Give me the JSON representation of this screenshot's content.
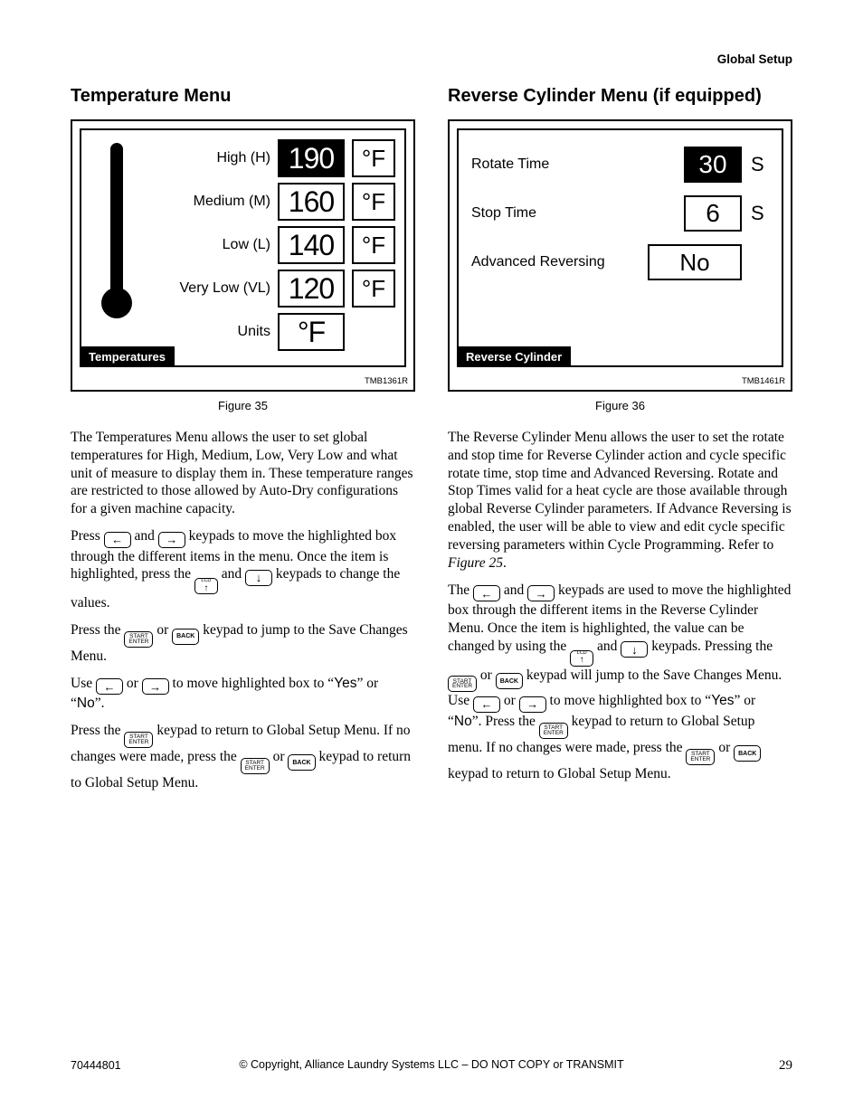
{
  "header": {
    "section": "Global Setup"
  },
  "left": {
    "title": "Temperature Menu",
    "panel": {
      "rows": [
        {
          "label": "High (H)",
          "value": "190",
          "highlight": true,
          "unit": "°F"
        },
        {
          "label": "Medium (M)",
          "value": "160",
          "highlight": false,
          "unit": "°F"
        },
        {
          "label": "Low (L)",
          "value": "140",
          "highlight": false,
          "unit": "°F"
        },
        {
          "label": "Very Low (VL)",
          "value": "120",
          "highlight": false,
          "unit": "°F"
        }
      ],
      "units_label": "Units",
      "units_value": "°F",
      "title_bar": "Temperatures",
      "code": "TMB1361R"
    },
    "caption": "Figure 35",
    "para1": "The Temperatures Menu allows the user to set global temperatures for High, Medium, Low, Very Low and what unit of measure to display them in. These temperature ranges are restricted to those allowed by Auto-Dry configurations for a given machine capacity.",
    "para2a": "Press ",
    "para2b": " and ",
    "para2c": " keypads to move the highlighted box through the different items in the menu. Once the item is highlighted, press the ",
    "para2d": " and ",
    "para2e": " keypads to change the values.",
    "para3a": "Press the ",
    "para3b": " or ",
    "para3c": " keypad to jump to the Save Changes Menu.",
    "para4a": "Use ",
    "para4b": " or ",
    "para4c": " to move highlighted box to “",
    "para4yes": "Yes",
    "para4d": "” or “",
    "para4no": "No",
    "para4e": "”.",
    "para5a": "Press the ",
    "para5b": " keypad to return to Global Setup Menu. If no changes were made, press the ",
    "para5c": " or ",
    "para5d": " keypad to return to Global Setup Menu."
  },
  "right": {
    "title": "Reverse Cylinder Menu (if equipped)",
    "panel": {
      "rows": [
        {
          "label": "Rotate Time",
          "value": "30",
          "highlight": true,
          "unit": "S"
        },
        {
          "label": "Stop Time",
          "value": "6",
          "highlight": false,
          "unit": "S"
        },
        {
          "label": "Advanced Reversing",
          "value": "No",
          "highlight": false,
          "wide": true
        }
      ],
      "title_bar": "Reverse Cylinder",
      "code": "TMB1461R"
    },
    "caption": "Figure 36",
    "para1": "The Reverse Cylinder Menu allows the user to set the rotate and stop time for Reverse Cylinder action and cycle specific rotate time, stop time and Advanced Reversing. Rotate and Stop Times valid for a heat cycle are those available through global Reverse Cylinder parameters. If Advance Reversing is enabled, the user will be able to view and edit cycle specific reversing parameters within Cycle Programming. Refer to ",
    "para1_ref": "Figure 25",
    "para1_end": ".",
    "para2a": "The ",
    "para2b": " and ",
    "para2c": " keypads are used to move the highlighted box through the different items in the Reverse Cylinder Menu. Once the item is highlighted, the value can be changed by using the ",
    "para2d": " and ",
    "para2e": " keypads. Pressing the ",
    "para2f": " or ",
    "para2g": " keypad will jump to the Save Changes Menu. Use ",
    "para2h": " or ",
    "para2i": " to move highlighted box to “",
    "para2yes": "Yes",
    "para2j": "” or “",
    "para2no": "No",
    "para2k": "”. Press the ",
    "para2l": " keypad to return to Global Setup menu. If no changes were made, press the ",
    "para2m": " or ",
    "para2n": " keypad to return to Global Setup Menu."
  },
  "keys": {
    "left": "←",
    "right": "→",
    "down": "↓",
    "lcd_top": "LCD",
    "lcd_bot": "↑",
    "start_top": "START",
    "start_bot": "ENTER",
    "back": "BACK"
  },
  "footer": {
    "doc": "70444801",
    "copyright": "© Copyright, Alliance Laundry Systems LLC – DO NOT COPY or TRANSMIT",
    "page": "29"
  }
}
